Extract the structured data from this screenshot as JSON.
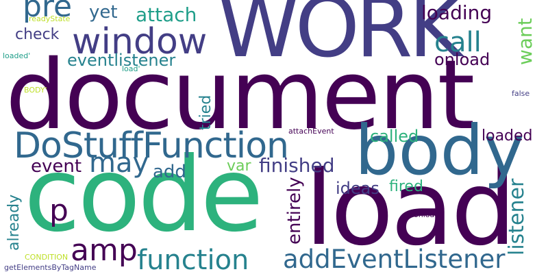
{
  "palette": {
    "dark_purple": "#440154",
    "indigo": "#433e85",
    "slate_blue": "#31688e",
    "teal": "#26828e",
    "green_teal": "#1f9e89",
    "jade": "#2db27d",
    "green": "#6ccd5a",
    "yellow_green": "#bddf26",
    "yellow": "#fde725"
  },
  "words": {
    "document": "document",
    "work": "WORK",
    "code": "code",
    "load": "load",
    "body": "body",
    "dostufffunction": "DoStuffFunction",
    "window": "window",
    "addeventlistener": "addEventListener",
    "function": "function",
    "amp": "amp",
    "pre": "pre",
    "call": "call",
    "may": "may",
    "listener": "listener",
    "finished": "finished",
    "event": "event",
    "eventlistener": "eventlistener",
    "attach": "attach",
    "loading": "loading",
    "yet": "yet",
    "check": "check",
    "onload": "onload",
    "want": "want",
    "called": "called",
    "loaded": "loaded",
    "add": "add",
    "var": "var",
    "ideas": "ideas",
    "fired": "fired",
    "p": "p",
    "entirely": "entirely",
    "already": "already",
    "tried": "tried",
    "readystate": "readyState",
    "loaded_quoted": "loaded'",
    "load_quoted": "load'",
    "body_quoted": "BODY'",
    "false": "false",
    "attachevent": "attachEvent",
    "onload_quoted": "onload'",
    "condition": "CONDITION",
    "getelementsbytagname": "getElementsByTagName"
  }
}
